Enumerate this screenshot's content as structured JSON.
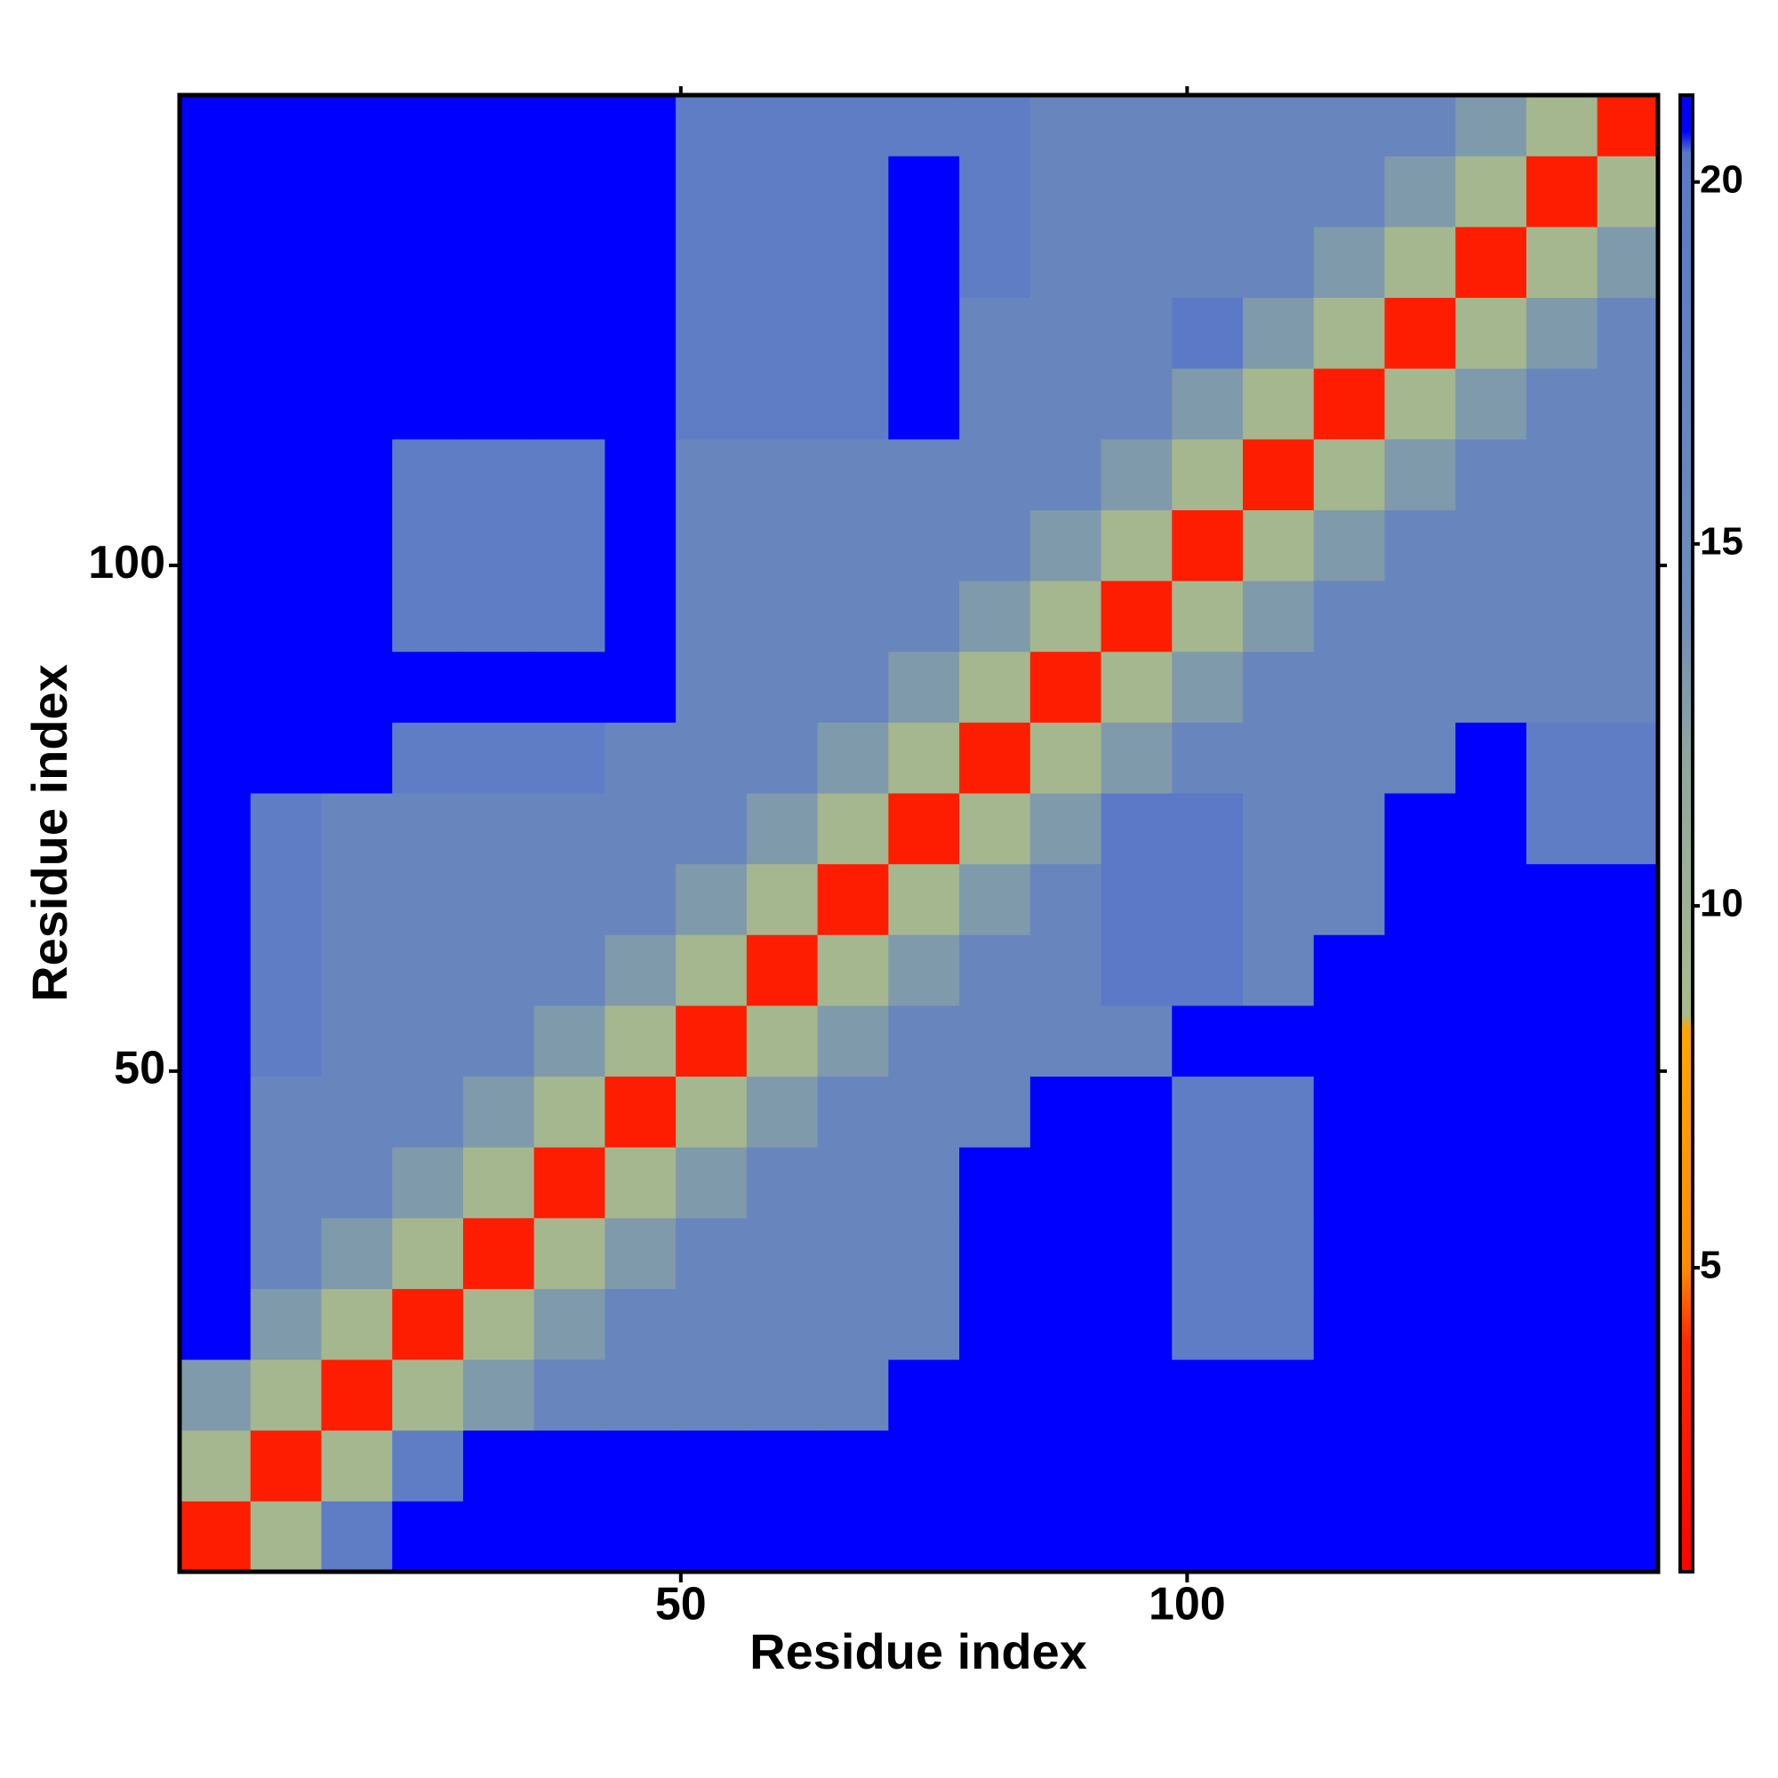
{
  "chart_data": {
    "type": "heatmap",
    "x_label": "Residue index",
    "y_label": "Residue index",
    "x": [
      4,
      11,
      18,
      25,
      32,
      39,
      46,
      53,
      60,
      67,
      74,
      81,
      88,
      95,
      102,
      109,
      116,
      123,
      130,
      137,
      144
    ],
    "y": [
      4,
      11,
      18,
      25,
      32,
      39,
      46,
      53,
      60,
      67,
      74,
      81,
      88,
      95,
      102,
      109,
      116,
      123,
      130,
      137,
      144
    ],
    "z": [
      [
        3,
        9,
        19,
        21,
        21,
        21,
        21,
        21,
        21,
        21,
        21,
        21,
        21,
        21,
        21,
        21,
        21,
        21,
        21,
        21,
        21
      ],
      [
        9,
        3,
        9,
        19,
        21,
        21,
        21,
        21,
        21,
        21,
        21,
        21,
        21,
        21,
        21,
        21,
        21,
        21,
        21,
        21,
        21
      ],
      [
        13,
        9,
        3,
        9,
        13,
        16,
        16,
        16,
        16,
        16,
        21,
        21,
        21,
        21,
        21,
        21,
        21,
        21,
        21,
        21,
        21
      ],
      [
        21,
        13,
        9,
        3,
        9,
        13,
        16,
        16,
        16,
        16,
        16,
        21,
        21,
        21,
        19,
        19,
        21,
        21,
        21,
        21,
        21
      ],
      [
        21,
        16,
        13,
        9,
        3,
        9,
        13,
        16,
        16,
        16,
        16,
        21,
        21,
        21,
        19,
        19,
        21,
        21,
        21,
        21,
        21
      ],
      [
        21,
        16,
        16,
        13,
        9,
        3,
        9,
        13,
        16,
        16,
        16,
        21,
        21,
        21,
        19,
        19,
        21,
        21,
        21,
        21,
        21
      ],
      [
        21,
        16,
        16,
        16,
        13,
        9,
        3,
        9,
        13,
        16,
        16,
        16,
        21,
        21,
        19,
        19,
        21,
        21,
        21,
        21,
        21
      ],
      [
        21,
        19,
        16,
        16,
        16,
        13,
        9,
        3,
        9,
        13,
        16,
        16,
        16,
        16,
        21,
        21,
        21,
        21,
        21,
        21,
        21
      ],
      [
        21,
        19,
        16,
        16,
        16,
        16,
        13,
        9,
        3,
        9,
        13,
        16,
        16,
        20,
        20,
        16,
        21,
        21,
        21,
        21,
        21
      ],
      [
        21,
        19,
        16,
        16,
        16,
        16,
        16,
        13,
        9,
        3,
        9,
        13,
        16,
        20,
        20,
        16,
        16,
        21,
        21,
        21,
        21
      ],
      [
        21,
        19,
        16,
        16,
        16,
        16,
        16,
        16,
        13,
        9,
        3,
        9,
        13,
        20,
        20,
        16,
        16,
        21,
        21,
        19,
        19
      ],
      [
        21,
        21,
        21,
        19,
        19,
        19,
        16,
        16,
        16,
        13,
        9,
        3,
        9,
        13,
        16,
        16,
        16,
        16,
        21,
        19,
        19
      ],
      [
        21,
        21,
        21,
        21,
        21,
        21,
        21,
        16,
        16,
        16,
        13,
        9,
        3,
        9,
        13,
        16,
        16,
        16,
        16,
        16,
        16
      ],
      [
        21,
        21,
        21,
        19,
        19,
        19,
        21,
        16,
        16,
        16,
        16,
        13,
        9,
        3,
        9,
        13,
        16,
        16,
        16,
        16,
        16
      ],
      [
        21,
        21,
        21,
        19,
        19,
        19,
        21,
        16,
        16,
        16,
        16,
        16,
        13,
        9,
        3,
        9,
        13,
        16,
        16,
        16,
        16
      ],
      [
        21,
        21,
        21,
        19,
        19,
        19,
        21,
        16,
        16,
        16,
        16,
        16,
        16,
        13,
        9,
        3,
        9,
        13,
        16,
        16,
        16
      ],
      [
        21,
        21,
        21,
        21,
        21,
        21,
        21,
        19,
        19,
        19,
        21,
        16,
        16,
        16,
        13,
        9,
        3,
        9,
        13,
        16,
        16
      ],
      [
        21,
        21,
        21,
        21,
        21,
        21,
        21,
        19,
        19,
        19,
        21,
        16,
        16,
        16,
        20,
        13,
        9,
        3,
        9,
        13,
        16
      ],
      [
        21,
        21,
        21,
        21,
        21,
        21,
        21,
        19,
        19,
        19,
        21,
        19,
        16,
        16,
        16,
        16,
        13,
        9,
        3,
        9,
        13
      ],
      [
        21,
        21,
        21,
        21,
        21,
        21,
        21,
        19,
        19,
        19,
        21,
        19,
        16,
        16,
        16,
        16,
        16,
        13,
        9,
        3,
        9
      ],
      [
        21,
        21,
        21,
        21,
        21,
        21,
        21,
        19,
        19,
        19,
        19,
        19,
        16,
        16,
        16,
        16,
        16,
        16,
        13,
        9,
        3
      ]
    ],
    "xlim": [
      0.5,
      146.5
    ],
    "ylim": [
      0.5,
      146.5
    ],
    "xticks": [
      50,
      100
    ],
    "yticks": [
      50,
      100
    ],
    "zlim": [
      0.8,
      21.2
    ],
    "zticks": [
      5,
      10,
      15,
      20
    ],
    "colorscale": [
      [
        0.8,
        "#ff0000"
      ],
      [
        4,
        "#ff2a00"
      ],
      [
        5,
        "#ff8c00"
      ],
      [
        8.3,
        "#ffa500"
      ],
      [
        8.5,
        "#a9ba8c"
      ],
      [
        12,
        "#8ea79e"
      ],
      [
        14,
        "#6f8db8"
      ],
      [
        20.4,
        "#5a78c8"
      ],
      [
        20.7,
        "#0000ff"
      ]
    ]
  }
}
